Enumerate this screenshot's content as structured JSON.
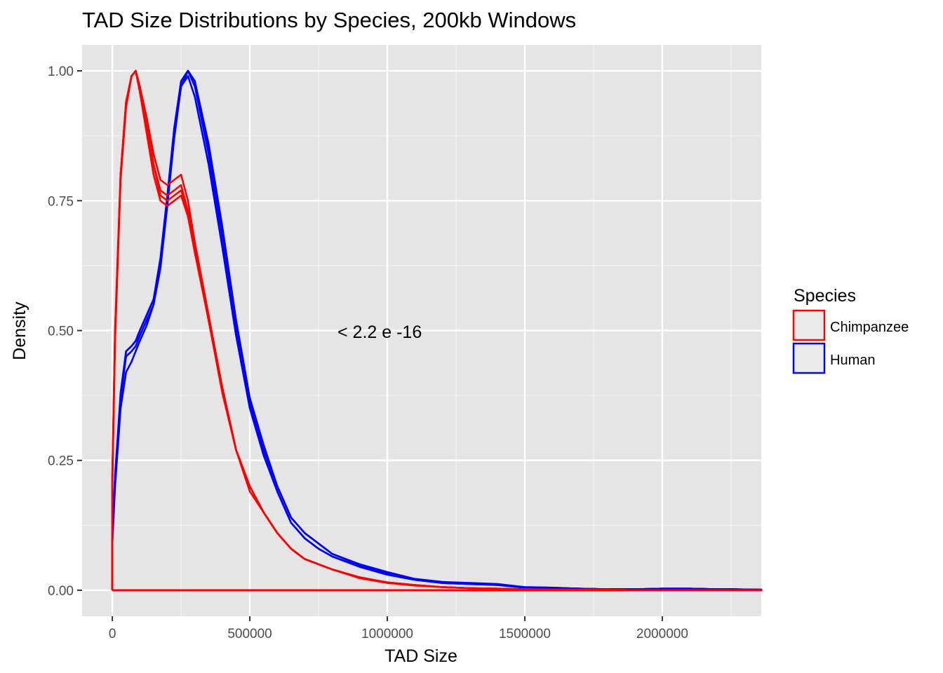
{
  "chart_data": {
    "type": "line",
    "title": "TAD Size Distributions by Species, 200kb Windows",
    "xlabel": "TAD Size",
    "ylabel": "Density",
    "xlim": [
      -110000,
      2360000
    ],
    "ylim": [
      -0.05,
      1.05
    ],
    "x_ticks": [
      0,
      500000,
      1000000,
      1500000,
      2000000
    ],
    "x_tick_labels": [
      "0",
      "500000",
      "1000000",
      "1500000",
      "2000000"
    ],
    "y_ticks": [
      0,
      0.25,
      0.5,
      0.75,
      1.0
    ],
    "y_tick_labels": [
      "0.00",
      "0.25",
      "0.50",
      "0.75",
      "1.00"
    ],
    "grid": true,
    "background": "#e5e5e5",
    "annotation": "< 2.2 e -16",
    "legend": {
      "title": "Species",
      "position": "right",
      "entries": [
        {
          "name": "Chimpanzee",
          "color": "#ff0000"
        },
        {
          "name": "Human",
          "color": "#0000ff"
        }
      ]
    },
    "x": [
      0,
      10000,
      30000,
      50000,
      70000,
      85000,
      100000,
      125000,
      150000,
      175000,
      200000,
      225000,
      250000,
      275000,
      300000,
      350000,
      400000,
      450000,
      500000,
      550000,
      600000,
      650000,
      700000,
      750000,
      800000,
      900000,
      1000000,
      1100000,
      1200000,
      1300000,
      1400000,
      1500000,
      1600000,
      1700000,
      1800000,
      1900000,
      2000000,
      2100000,
      2200000,
      2250000,
      2360000
    ],
    "series": [
      {
        "name": "Chimpanzee",
        "color": "#ff0000",
        "values": [
          0.22,
          0.5,
          0.8,
          0.94,
          0.99,
          1.0,
          0.97,
          0.91,
          0.84,
          0.79,
          0.78,
          0.79,
          0.8,
          0.75,
          0.67,
          0.53,
          0.39,
          0.27,
          0.2,
          0.15,
          0.11,
          0.08,
          0.06,
          0.05,
          0.04,
          0.025,
          0.015,
          0.01,
          0.006,
          0.004,
          0.003,
          0.002,
          0.001,
          0.001,
          0.001,
          0.0,
          0.0,
          0.0,
          0.0,
          0.0,
          0.0
        ]
      },
      {
        "name": "Chimpanzee",
        "color": "#ff0000",
        "values": [
          0.2,
          0.48,
          0.79,
          0.93,
          0.99,
          1.0,
          0.96,
          0.89,
          0.82,
          0.77,
          0.76,
          0.77,
          0.78,
          0.73,
          0.66,
          0.52,
          0.39,
          0.27,
          0.2,
          0.15,
          0.11,
          0.08,
          0.06,
          0.05,
          0.04,
          0.024,
          0.015,
          0.01,
          0.006,
          0.004,
          0.003,
          0.002,
          0.001,
          0.001,
          0.001,
          0.0,
          0.0,
          0.0,
          0.0,
          0.0,
          0.0
        ]
      },
      {
        "name": "Chimpanzee",
        "color": "#ff0000",
        "values": [
          0.21,
          0.49,
          0.8,
          0.94,
          0.99,
          1.0,
          0.96,
          0.88,
          0.8,
          0.75,
          0.74,
          0.75,
          0.76,
          0.72,
          0.65,
          0.52,
          0.38,
          0.27,
          0.19,
          0.15,
          0.11,
          0.08,
          0.06,
          0.05,
          0.04,
          0.023,
          0.014,
          0.009,
          0.006,
          0.004,
          0.003,
          0.002,
          0.001,
          0.001,
          0.001,
          0.0,
          0.0,
          0.0,
          0.0,
          0.0,
          0.0
        ]
      },
      {
        "name": "Chimpanzee",
        "color": "#ff0000",
        "values": [
          0.22,
          0.5,
          0.8,
          0.94,
          0.99,
          1.0,
          0.97,
          0.9,
          0.82,
          0.76,
          0.75,
          0.76,
          0.77,
          0.73,
          0.66,
          0.52,
          0.39,
          0.27,
          0.2,
          0.15,
          0.11,
          0.08,
          0.06,
          0.05,
          0.04,
          0.024,
          0.015,
          0.01,
          0.006,
          0.004,
          0.003,
          0.002,
          0.001,
          0.001,
          0.001,
          0.0,
          0.0,
          0.0,
          0.0,
          0.0,
          0.0
        ]
      },
      {
        "name": "Human",
        "color": "#0000ff",
        "values": [
          0.1,
          0.22,
          0.38,
          0.46,
          0.47,
          0.48,
          0.5,
          0.53,
          0.56,
          0.64,
          0.76,
          0.89,
          0.98,
          1.0,
          0.98,
          0.86,
          0.7,
          0.52,
          0.37,
          0.28,
          0.2,
          0.14,
          0.11,
          0.09,
          0.07,
          0.05,
          0.035,
          0.022,
          0.016,
          0.014,
          0.012,
          0.006,
          0.005,
          0.003,
          0.002,
          0.002,
          0.003,
          0.003,
          0.002,
          0.002,
          0.001
        ]
      },
      {
        "name": "Human",
        "color": "#0000ff",
        "values": [
          0.1,
          0.21,
          0.37,
          0.45,
          0.46,
          0.47,
          0.49,
          0.52,
          0.55,
          0.63,
          0.75,
          0.88,
          0.98,
          1.0,
          0.97,
          0.84,
          0.68,
          0.5,
          0.36,
          0.27,
          0.2,
          0.14,
          0.11,
          0.09,
          0.07,
          0.048,
          0.033,
          0.021,
          0.015,
          0.013,
          0.011,
          0.006,
          0.005,
          0.003,
          0.002,
          0.002,
          0.003,
          0.003,
          0.002,
          0.002,
          0.001
        ]
      },
      {
        "name": "Human",
        "color": "#0000ff",
        "values": [
          0.09,
          0.2,
          0.35,
          0.42,
          0.44,
          0.46,
          0.48,
          0.51,
          0.55,
          0.62,
          0.74,
          0.87,
          0.97,
          1.0,
          0.98,
          0.85,
          0.69,
          0.51,
          0.36,
          0.26,
          0.19,
          0.13,
          0.1,
          0.08,
          0.065,
          0.045,
          0.03,
          0.02,
          0.014,
          0.012,
          0.01,
          0.005,
          0.004,
          0.003,
          0.002,
          0.002,
          0.003,
          0.003,
          0.002,
          0.002,
          0.001
        ]
      },
      {
        "name": "Human",
        "color": "#0000ff",
        "values": [
          0.1,
          0.22,
          0.37,
          0.46,
          0.47,
          0.48,
          0.5,
          0.53,
          0.56,
          0.63,
          0.75,
          0.88,
          0.97,
          0.99,
          0.95,
          0.82,
          0.66,
          0.49,
          0.35,
          0.26,
          0.19,
          0.13,
          0.1,
          0.08,
          0.065,
          0.045,
          0.03,
          0.02,
          0.014,
          0.012,
          0.01,
          0.005,
          0.004,
          0.003,
          0.002,
          0.002,
          0.003,
          0.003,
          0.002,
          0.002,
          0.001
        ]
      }
    ]
  }
}
